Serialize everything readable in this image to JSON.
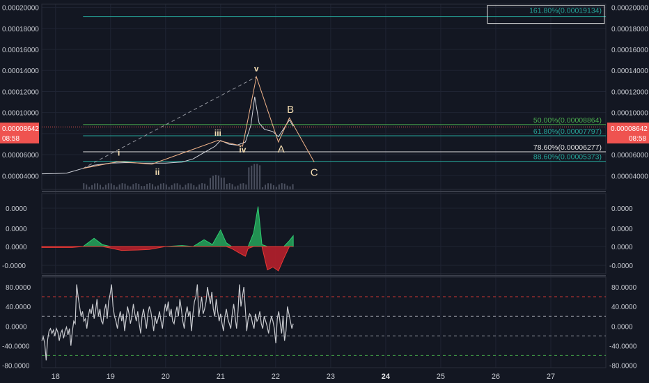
{
  "chart_data": [
    {
      "type": "line",
      "panel": "price",
      "y_ticks": [
        "0.00020000",
        "0.00018000",
        "0.00016000",
        "0.00014000",
        "0.00012000",
        "0.00010000",
        "0.00008000",
        "0.00006000",
        "0.00004000"
      ],
      "ylim": [
        2.7e-05,
        0.000203
      ],
      "xlim": [
        17.75,
        28.0
      ],
      "x_ticks": [
        "18",
        "19",
        "20",
        "21",
        "22",
        "23",
        "24",
        "25",
        "26",
        "27"
      ],
      "x_tick_bold": "24",
      "current_price": "0.00008642",
      "countdown": "08:58",
      "price_series": [
        [
          17.75,
          4.18e-05
        ],
        [
          18.0,
          4.2e-05
        ],
        [
          18.2,
          4.25e-05
        ],
        [
          18.5,
          4.7e-05
        ],
        [
          18.7,
          5e-05
        ],
        [
          19.0,
          5.2e-05
        ],
        [
          19.3,
          5.25e-05
        ],
        [
          19.6,
          5.2e-05
        ],
        [
          20.0,
          5.2e-05
        ],
        [
          20.3,
          5.3e-05
        ],
        [
          20.5,
          5.6e-05
        ],
        [
          20.7,
          6.2e-05
        ],
        [
          20.9,
          6.8e-05
        ],
        [
          21.0,
          7.35e-05
        ],
        [
          21.15,
          7e-05
        ],
        [
          21.3,
          6.9e-05
        ],
        [
          21.45,
          7.2e-05
        ],
        [
          21.55,
          8.8e-05
        ],
        [
          21.62,
          0.000115
        ],
        [
          21.7,
          9e-05
        ],
        [
          21.8,
          8.4e-05
        ],
        [
          21.95,
          8.2e-05
        ],
        [
          22.05,
          7.7e-05
        ],
        [
          22.15,
          8.5e-05
        ],
        [
          22.25,
          9.3e-05
        ],
        [
          22.32,
          8.7e-05
        ]
      ],
      "wave_path": [
        [
          18.5,
          4.7e-05
        ],
        [
          19.15,
          5.35e-05
        ],
        [
          19.75,
          5.1e-05
        ],
        [
          20.95,
          7.35e-05
        ],
        [
          21.4,
          6.8e-05
        ],
        [
          21.65,
          0.000134
        ],
        [
          22.05,
          7.2e-05
        ],
        [
          22.25,
          9.5e-05
        ],
        [
          22.7,
          5.3e-05
        ]
      ],
      "trend_line": [
        [
          18.5,
          4.7e-05
        ],
        [
          21.65,
          0.000134
        ]
      ],
      "wave_labels": [
        {
          "text": "i",
          "x": 19.15,
          "y": 5.9e-05,
          "color": "#f5deb3",
          "style": "small"
        },
        {
          "text": "ii",
          "x": 19.85,
          "y": 4.1e-05,
          "color": "#f5deb3",
          "style": "small"
        },
        {
          "text": "iii",
          "x": 20.95,
          "y": 7.8e-05,
          "color": "#f5deb3",
          "style": "small"
        },
        {
          "text": "iv",
          "x": 21.4,
          "y": 6.2e-05,
          "color": "#f5deb3",
          "style": "small"
        },
        {
          "text": "v",
          "x": 21.65,
          "y": 0.000139,
          "color": "#f5deb3",
          "style": "small"
        },
        {
          "text": "A",
          "x": 22.1,
          "y": 6.2e-05,
          "color": "#f5deb3",
          "style": "big"
        },
        {
          "text": "B",
          "x": 22.27,
          "y": 9.98e-05,
          "color": "#f5deb3",
          "style": "big"
        },
        {
          "text": "C",
          "x": 22.7,
          "y": 4e-05,
          "color": "#f5deb3",
          "style": "big"
        }
      ],
      "fib_levels": [
        {
          "label": "161.80%(0.00019134)",
          "value": 0.00019134,
          "color": "#26a69a",
          "x_start": 18.5
        },
        {
          "label": "50.00%(0.00008864)",
          "value": 8.864e-05,
          "color": "#4caf50",
          "x_start": 18.5
        },
        {
          "label": "61.80%(0.00007797)",
          "value": 7.797e-05,
          "color": "#26a69a",
          "x_start": 18.5
        },
        {
          "label": "78.60%(0.00006277)",
          "value": 6.277e-05,
          "color": "#e0e0e0",
          "x_start": 18.5
        },
        {
          "label": "88.60%(0.00005373)",
          "value": 5.373e-05,
          "color": "#26a69a",
          "x_start": 18.5
        }
      ]
    },
    {
      "type": "area",
      "panel": "oscillator",
      "y_ticks": [
        "0.0000",
        "0.0000",
        "0.0000",
        "-0.0000"
      ],
      "x": [
        17.75,
        18.3,
        18.5,
        18.7,
        18.85,
        19.0,
        19.2,
        19.5,
        19.7,
        20.0,
        20.3,
        20.5,
        20.7,
        20.85,
        21.0,
        21.1,
        21.2,
        21.35,
        21.45,
        21.5,
        21.6,
        21.68,
        21.75,
        21.85,
        21.95,
        22.05,
        22.15,
        22.25,
        22.32
      ],
      "values": [
        -0.05,
        -0.05,
        0.0,
        0.42,
        0.1,
        -0.08,
        -0.2,
        -0.18,
        -0.15,
        0.0,
        0.05,
        0.0,
        0.35,
        0.1,
        0.85,
        0.2,
        -0.1,
        -0.35,
        -0.5,
        -0.1,
        0.7,
        2.05,
        0.1,
        -1.2,
        -1.05,
        -1.25,
        -0.6,
        0.3,
        0.55
      ]
    },
    {
      "type": "line",
      "panel": "rsi",
      "y_ticks": [
        "80.0000",
        "40.0000",
        "0.0000",
        "-40.0000",
        "-80.0000"
      ],
      "ylim": [
        -85,
        100
      ],
      "dashed_levels": [
        {
          "value": 60,
          "color": "#e53935"
        },
        {
          "value": 20,
          "color": "#9598a1"
        },
        {
          "value": -20,
          "color": "#9598a1"
        },
        {
          "value": -60,
          "color": "#43a047"
        }
      ],
      "x_start": 17.75,
      "x_end": 22.32,
      "values": [
        -30,
        -22,
        -35,
        -70,
        -28,
        -10,
        -5,
        -15,
        -8,
        -20,
        -5,
        -12,
        -30,
        -15,
        -8,
        -25,
        -10,
        -2,
        -18,
        -5,
        -40,
        -12,
        10,
        5,
        85,
        60,
        40,
        20,
        30,
        10,
        15,
        -5,
        20,
        35,
        25,
        45,
        15,
        30,
        55,
        20,
        35,
        10,
        5,
        30,
        45,
        15,
        50,
        65,
        85,
        40,
        20,
        10,
        -5,
        15,
        30,
        10,
        25,
        -10,
        15,
        40,
        25,
        5,
        20,
        45,
        25,
        10,
        30,
        5,
        -15,
        20,
        35,
        15,
        -5,
        25,
        40,
        30,
        10,
        -10,
        20,
        5,
        15,
        30,
        10,
        -5,
        25,
        45,
        30,
        50,
        20,
        35,
        10,
        5,
        25,
        40,
        20,
        55,
        35,
        10,
        -5,
        25,
        40,
        20,
        30,
        -10,
        25,
        50,
        60,
        85,
        20,
        40,
        60,
        25,
        35,
        50,
        80,
        60,
        45,
        70,
        35,
        20,
        55,
        30,
        10,
        25,
        5,
        -10,
        20,
        35,
        15,
        5,
        -5,
        25,
        45,
        20,
        -5,
        30,
        85,
        40,
        60,
        80,
        35,
        -10,
        15,
        25,
        20,
        5,
        -5,
        25,
        10,
        15,
        30,
        5,
        -5,
        20,
        10,
        0,
        -15,
        5,
        20,
        10,
        -5,
        -35,
        15,
        30,
        5,
        -15,
        20,
        -30,
        -10,
        40,
        25,
        10,
        -5,
        5
      ]
    }
  ]
}
